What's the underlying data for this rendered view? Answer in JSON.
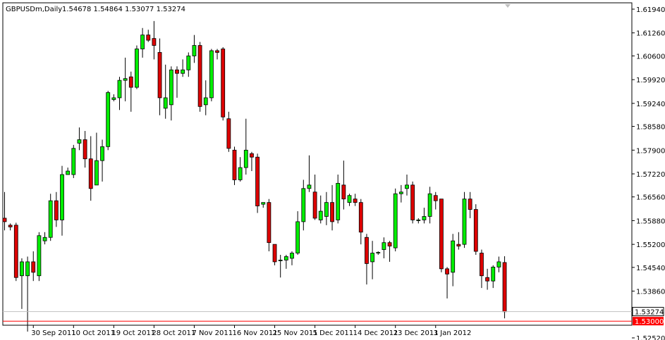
{
  "header": {
    "symbol": "GBPUSDm,Daily",
    "ohlc": "1.54678 1.54864 1.53077 1.53274"
  },
  "colors": {
    "bull": "#00ee00",
    "bear": "#dd0000",
    "wick": "#000000",
    "border": "#000000",
    "bid_line": "#c0c0c0",
    "level_line": "#ff0000"
  },
  "chart_data": {
    "type": "candlestick",
    "title": "GBPUSDm,Daily",
    "ylim": [
      1.5252,
      1.6194
    ],
    "x_tick_labels": [
      "30 Sep 2011",
      "10 Oct 2011",
      "19 Oct 2011",
      "28 Oct 2011",
      "7 Nov 2011",
      "16 Nov 2011",
      "25 Nov 2011",
      "5 Dec 2011",
      "14 Dec 2011",
      "23 Dec 2011",
      "3 Jan 2012"
    ],
    "x_tick_bars": [
      5,
      12,
      19,
      26,
      33,
      40,
      47,
      54,
      61,
      68,
      75
    ],
    "y_ticks": [
      1.6194,
      1.6126,
      1.606,
      1.5992,
      1.5924,
      1.5858,
      1.579,
      1.5722,
      1.5656,
      1.5588,
      1.552,
      1.5454,
      1.5386,
      1.5252
    ],
    "y_tick_labels": [
      "1.61940",
      "1.61260",
      "1.60600",
      "1.59920",
      "1.59240",
      "1.58580",
      "1.57900",
      "1.57220",
      "1.56560",
      "1.55880",
      "1.55200",
      "1.54540",
      "1.53860",
      "1.52520"
    ],
    "current_price": 1.53274,
    "current_price_label": "1.53274",
    "level_line": 1.53,
    "level_line_label": "1.53000",
    "candles": [
      {
        "o": 1.5595,
        "h": 1.567,
        "l": 1.556,
        "c": 1.5585
      },
      {
        "o": 1.5575,
        "h": 1.558,
        "l": 1.556,
        "c": 1.557
      },
      {
        "o": 1.5575,
        "h": 1.5582,
        "l": 1.5415,
        "c": 1.5425
      },
      {
        "o": 1.543,
        "h": 1.548,
        "l": 1.5335,
        "c": 1.547
      },
      {
        "o": 1.543,
        "h": 1.5485,
        "l": 1.527,
        "c": 1.547
      },
      {
        "o": 1.547,
        "h": 1.55,
        "l": 1.5415,
        "c": 1.544
      },
      {
        "o": 1.543,
        "h": 1.5555,
        "l": 1.5415,
        "c": 1.5545
      },
      {
        "o": 1.553,
        "h": 1.5555,
        "l": 1.552,
        "c": 1.554
      },
      {
        "o": 1.554,
        "h": 1.5665,
        "l": 1.553,
        "c": 1.5645
      },
      {
        "o": 1.5645,
        "h": 1.567,
        "l": 1.557,
        "c": 1.559
      },
      {
        "o": 1.559,
        "h": 1.5745,
        "l": 1.5545,
        "c": 1.572
      },
      {
        "o": 1.572,
        "h": 1.574,
        "l": 1.572,
        "c": 1.573
      },
      {
        "o": 1.572,
        "h": 1.5805,
        "l": 1.571,
        "c": 1.5795
      },
      {
        "o": 1.581,
        "h": 1.5855,
        "l": 1.579,
        "c": 1.582
      },
      {
        "o": 1.582,
        "h": 1.5845,
        "l": 1.574,
        "c": 1.5765
      },
      {
        "o": 1.5765,
        "h": 1.583,
        "l": 1.5645,
        "c": 1.568
      },
      {
        "o": 1.569,
        "h": 1.584,
        "l": 1.569,
        "c": 1.576
      },
      {
        "o": 1.576,
        "h": 1.582,
        "l": 1.57,
        "c": 1.58
      },
      {
        "o": 1.58,
        "h": 1.596,
        "l": 1.579,
        "c": 1.5955
      },
      {
        "o": 1.5935,
        "h": 1.595,
        "l": 1.593,
        "c": 1.594
      },
      {
        "o": 1.594,
        "h": 1.6,
        "l": 1.5905,
        "c": 1.599
      },
      {
        "o": 1.599,
        "h": 1.6055,
        "l": 1.593,
        "c": 1.5995
      },
      {
        "o": 1.6,
        "h": 1.6015,
        "l": 1.59,
        "c": 1.597
      },
      {
        "o": 1.597,
        "h": 1.609,
        "l": 1.5965,
        "c": 1.608
      },
      {
        "o": 1.608,
        "h": 1.614,
        "l": 1.6055,
        "c": 1.612
      },
      {
        "o": 1.612,
        "h": 1.6135,
        "l": 1.61,
        "c": 1.6105
      },
      {
        "o": 1.611,
        "h": 1.616,
        "l": 1.605,
        "c": 1.609
      },
      {
        "o": 1.607,
        "h": 1.611,
        "l": 1.589,
        "c": 1.594
      },
      {
        "o": 1.591,
        "h": 1.6035,
        "l": 1.588,
        "c": 1.594
      },
      {
        "o": 1.592,
        "h": 1.603,
        "l": 1.5875,
        "c": 1.602
      },
      {
        "o": 1.602,
        "h": 1.603,
        "l": 1.594,
        "c": 1.601
      },
      {
        "o": 1.601,
        "h": 1.605,
        "l": 1.6,
        "c": 1.602
      },
      {
        "o": 1.602,
        "h": 1.607,
        "l": 1.6,
        "c": 1.606
      },
      {
        "o": 1.606,
        "h": 1.612,
        "l": 1.604,
        "c": 1.609
      },
      {
        "o": 1.609,
        "h": 1.61,
        "l": 1.59,
        "c": 1.5915
      },
      {
        "o": 1.592,
        "h": 1.599,
        "l": 1.589,
        "c": 1.594
      },
      {
        "o": 1.594,
        "h": 1.608,
        "l": 1.593,
        "c": 1.6075
      },
      {
        "o": 1.6075,
        "h": 1.608,
        "l": 1.605,
        "c": 1.607
      },
      {
        "o": 1.608,
        "h": 1.6085,
        "l": 1.5875,
        "c": 1.5885
      },
      {
        "o": 1.588,
        "h": 1.59,
        "l": 1.5785,
        "c": 1.5795
      },
      {
        "o": 1.579,
        "h": 1.58,
        "l": 1.569,
        "c": 1.5705
      },
      {
        "o": 1.5705,
        "h": 1.577,
        "l": 1.57,
        "c": 1.574
      },
      {
        "o": 1.574,
        "h": 1.588,
        "l": 1.572,
        "c": 1.579
      },
      {
        "o": 1.578,
        "h": 1.5785,
        "l": 1.573,
        "c": 1.577
      },
      {
        "o": 1.577,
        "h": 1.578,
        "l": 1.561,
        "c": 1.563
      },
      {
        "o": 1.5635,
        "h": 1.564,
        "l": 1.5625,
        "c": 1.564
      },
      {
        "o": 1.564,
        "h": 1.565,
        "l": 1.55,
        "c": 1.5525
      },
      {
        "o": 1.552,
        "h": 1.552,
        "l": 1.546,
        "c": 1.547
      },
      {
        "o": 1.5475,
        "h": 1.549,
        "l": 1.5425,
        "c": 1.5475
      },
      {
        "o": 1.5475,
        "h": 1.549,
        "l": 1.545,
        "c": 1.5485
      },
      {
        "o": 1.548,
        "h": 1.55,
        "l": 1.546,
        "c": 1.5495
      },
      {
        "o": 1.5495,
        "h": 1.5615,
        "l": 1.549,
        "c": 1.5585
      },
      {
        "o": 1.5585,
        "h": 1.5705,
        "l": 1.556,
        "c": 1.568
      },
      {
        "o": 1.568,
        "h": 1.5775,
        "l": 1.567,
        "c": 1.569
      },
      {
        "o": 1.567,
        "h": 1.572,
        "l": 1.559,
        "c": 1.5595
      },
      {
        "o": 1.559,
        "h": 1.566,
        "l": 1.558,
        "c": 1.5615
      },
      {
        "o": 1.56,
        "h": 1.567,
        "l": 1.5575,
        "c": 1.564
      },
      {
        "o": 1.564,
        "h": 1.569,
        "l": 1.556,
        "c": 1.5585
      },
      {
        "o": 1.559,
        "h": 1.572,
        "l": 1.558,
        "c": 1.5695
      },
      {
        "o": 1.569,
        "h": 1.576,
        "l": 1.562,
        "c": 1.565
      },
      {
        "o": 1.564,
        "h": 1.5665,
        "l": 1.563,
        "c": 1.566
      },
      {
        "o": 1.565,
        "h": 1.5665,
        "l": 1.563,
        "c": 1.564
      },
      {
        "o": 1.564,
        "h": 1.565,
        "l": 1.552,
        "c": 1.5555
      },
      {
        "o": 1.554,
        "h": 1.555,
        "l": 1.5405,
        "c": 1.5465
      },
      {
        "o": 1.547,
        "h": 1.553,
        "l": 1.542,
        "c": 1.5495
      },
      {
        "o": 1.5495,
        "h": 1.55,
        "l": 1.549,
        "c": 1.5497
      },
      {
        "o": 1.5505,
        "h": 1.554,
        "l": 1.548,
        "c": 1.5525
      },
      {
        "o": 1.5525,
        "h": 1.553,
        "l": 1.547,
        "c": 1.5515
      },
      {
        "o": 1.551,
        "h": 1.568,
        "l": 1.55,
        "c": 1.5665
      },
      {
        "o": 1.5665,
        "h": 1.569,
        "l": 1.564,
        "c": 1.567
      },
      {
        "o": 1.568,
        "h": 1.572,
        "l": 1.566,
        "c": 1.569
      },
      {
        "o": 1.569,
        "h": 1.57,
        "l": 1.558,
        "c": 1.559
      },
      {
        "o": 1.559,
        "h": 1.5595,
        "l": 1.558,
        "c": 1.559
      },
      {
        "o": 1.559,
        "h": 1.5625,
        "l": 1.558,
        "c": 1.56
      },
      {
        "o": 1.56,
        "h": 1.5685,
        "l": 1.558,
        "c": 1.5665
      },
      {
        "o": 1.566,
        "h": 1.567,
        "l": 1.562,
        "c": 1.5645
      },
      {
        "o": 1.565,
        "h": 1.565,
        "l": 1.544,
        "c": 1.545
      },
      {
        "o": 1.545,
        "h": 1.5455,
        "l": 1.5365,
        "c": 1.5435
      },
      {
        "o": 1.544,
        "h": 1.555,
        "l": 1.54,
        "c": 1.553
      },
      {
        "o": 1.552,
        "h": 1.5555,
        "l": 1.5505,
        "c": 1.5515
      },
      {
        "o": 1.552,
        "h": 1.567,
        "l": 1.551,
        "c": 1.565
      },
      {
        "o": 1.565,
        "h": 1.567,
        "l": 1.5595,
        "c": 1.562
      },
      {
        "o": 1.562,
        "h": 1.5635,
        "l": 1.549,
        "c": 1.55
      },
      {
        "o": 1.5495,
        "h": 1.5505,
        "l": 1.5395,
        "c": 1.543
      },
      {
        "o": 1.5425,
        "h": 1.545,
        "l": 1.539,
        "c": 1.5415
      },
      {
        "o": 1.5415,
        "h": 1.546,
        "l": 1.5395,
        "c": 1.5455
      },
      {
        "o": 1.5455,
        "h": 1.5485,
        "l": 1.544,
        "c": 1.547
      },
      {
        "o": 1.5468,
        "h": 1.5486,
        "l": 1.5308,
        "c": 1.5327
      }
    ]
  }
}
